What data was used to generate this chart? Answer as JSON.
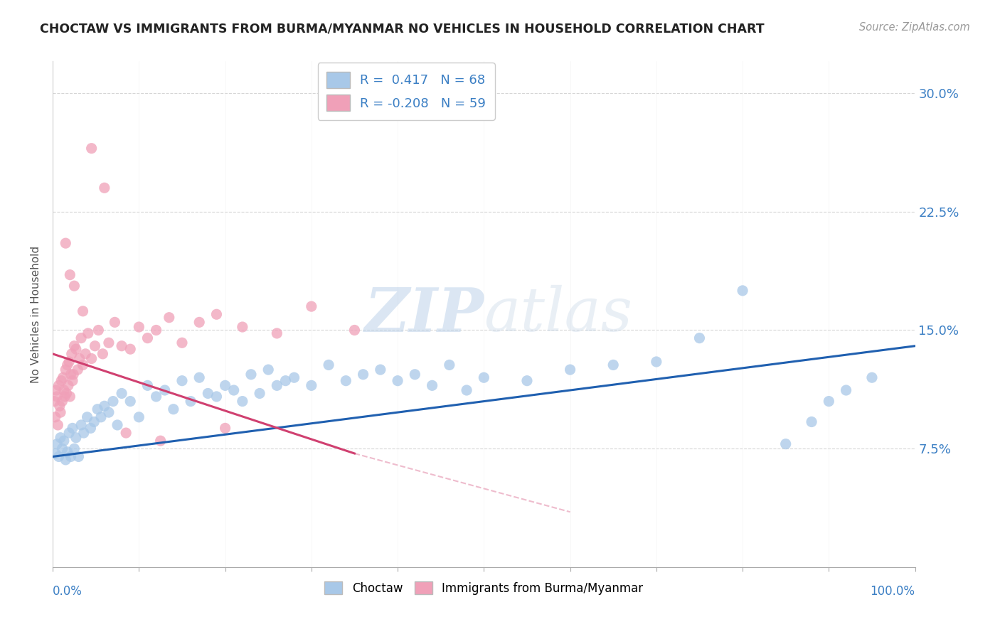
{
  "title": "CHOCTAW VS IMMIGRANTS FROM BURMA/MYANMAR NO VEHICLES IN HOUSEHOLD CORRELATION CHART",
  "source": "Source: ZipAtlas.com",
  "ylabel": "No Vehicles in Household",
  "xlim": [
    0,
    100
  ],
  "ylim": [
    0,
    32
  ],
  "blue_R": 0.417,
  "blue_N": 68,
  "pink_R": -0.208,
  "pink_N": 59,
  "blue_color": "#a8c8e8",
  "pink_color": "#f0a0b8",
  "blue_line_color": "#2060b0",
  "pink_line_color": "#d04070",
  "pink_dash_color": "#e8a0b8",
  "watermark_color": "#d0dff0",
  "background_color": "#ffffff",
  "blue_scatter_x": [
    0.3,
    0.5,
    0.7,
    0.9,
    1.1,
    1.3,
    1.5,
    1.7,
    1.9,
    2.1,
    2.3,
    2.5,
    2.7,
    3.0,
    3.3,
    3.6,
    4.0,
    4.4,
    4.8,
    5.2,
    5.6,
    6.0,
    6.5,
    7.0,
    7.5,
    8.0,
    9.0,
    10.0,
    11.0,
    12.0,
    13.0,
    14.0,
    15.0,
    16.0,
    17.0,
    18.0,
    19.0,
    20.0,
    21.0,
    22.0,
    23.0,
    24.0,
    25.0,
    26.0,
    27.0,
    28.0,
    30.0,
    32.0,
    34.0,
    36.0,
    38.0,
    40.0,
    42.0,
    44.0,
    46.0,
    48.0,
    50.0,
    55.0,
    60.0,
    65.0,
    70.0,
    75.0,
    80.0,
    85.0,
    88.0,
    90.0,
    92.0,
    95.0
  ],
  "blue_scatter_y": [
    7.2,
    7.8,
    7.0,
    8.2,
    7.5,
    8.0,
    6.8,
    7.3,
    8.5,
    7.0,
    8.8,
    7.5,
    8.2,
    7.0,
    9.0,
    8.5,
    9.5,
    8.8,
    9.2,
    10.0,
    9.5,
    10.2,
    9.8,
    10.5,
    9.0,
    11.0,
    10.5,
    9.5,
    11.5,
    10.8,
    11.2,
    10.0,
    11.8,
    10.5,
    12.0,
    11.0,
    10.8,
    11.5,
    11.2,
    10.5,
    12.2,
    11.0,
    12.5,
    11.5,
    11.8,
    12.0,
    11.5,
    12.8,
    11.8,
    12.2,
    12.5,
    11.8,
    12.2,
    11.5,
    12.8,
    11.2,
    12.0,
    11.8,
    12.5,
    12.8,
    13.0,
    14.5,
    17.5,
    7.8,
    9.2,
    10.5,
    11.2,
    12.0
  ],
  "pink_scatter_x": [
    0.2,
    0.3,
    0.4,
    0.5,
    0.6,
    0.7,
    0.8,
    0.9,
    1.0,
    1.1,
    1.2,
    1.3,
    1.4,
    1.5,
    1.6,
    1.7,
    1.8,
    1.9,
    2.0,
    2.1,
    2.2,
    2.3,
    2.4,
    2.5,
    2.7,
    2.9,
    3.1,
    3.3,
    3.5,
    3.8,
    4.1,
    4.5,
    4.9,
    5.3,
    5.8,
    6.5,
    7.2,
    8.0,
    9.0,
    10.0,
    11.0,
    12.0,
    13.5,
    15.0,
    17.0,
    19.0,
    22.0,
    26.0,
    30.0,
    35.0,
    1.5,
    2.0,
    2.5,
    3.5,
    4.5,
    6.0,
    8.5,
    12.5,
    20.0
  ],
  "pink_scatter_y": [
    10.5,
    9.5,
    11.2,
    10.8,
    9.0,
    11.5,
    10.2,
    9.8,
    11.8,
    10.5,
    12.0,
    11.2,
    10.8,
    12.5,
    11.0,
    12.8,
    11.5,
    13.0,
    10.8,
    12.2,
    13.5,
    11.8,
    12.2,
    14.0,
    13.8,
    12.5,
    13.2,
    14.5,
    12.8,
    13.5,
    14.8,
    13.2,
    14.0,
    15.0,
    13.5,
    14.2,
    15.5,
    14.0,
    13.8,
    15.2,
    14.5,
    15.0,
    15.8,
    14.2,
    15.5,
    16.0,
    15.2,
    14.8,
    16.5,
    15.0,
    20.5,
    18.5,
    17.8,
    16.2,
    26.5,
    24.0,
    8.5,
    8.0,
    8.8
  ]
}
